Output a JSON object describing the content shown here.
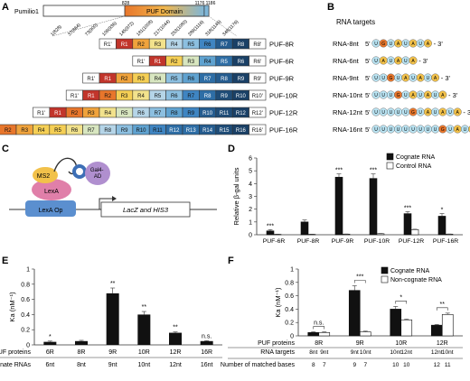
{
  "panel_labels": {
    "a": "A",
    "b": "B",
    "c": "C",
    "d": "D",
    "e": "E",
    "f": "F"
  },
  "panel_a": {
    "protein_label": "Pumilio1",
    "domain_label": "PUF Domain",
    "pos_start": "828",
    "pos_end_a": "1176",
    "pos_end_b": "1186",
    "diag_labels": [
      "1(828)",
      "37(864)",
      "73(900)",
      "109(936)",
      "145(972)",
      "181(1008)",
      "217(1044)",
      "253(1080)",
      "289(1116)",
      "318(1145)",
      "348(1176)"
    ],
    "constructs": [
      {
        "name": "PUF-8R",
        "repeats": [
          "R1'",
          "R1",
          "R2",
          "R3",
          "R4",
          "R5",
          "R6",
          "R7",
          "R8",
          "R8'"
        ]
      },
      {
        "name": "PUF-6R",
        "repeats": [
          "R1'",
          "R1",
          "R2",
          "R3",
          "R4",
          "R5",
          "R6",
          "R6'"
        ]
      },
      {
        "name": "PUF-9R",
        "repeats": [
          "R1'",
          "R1",
          "R2",
          "R3",
          "R4",
          "R5",
          "R6",
          "R7",
          "R8",
          "R9",
          "R9'"
        ]
      },
      {
        "name": "PUF-10R",
        "repeats": [
          "R1'",
          "R1",
          "R2",
          "R3",
          "R4",
          "R5",
          "R6",
          "R7",
          "R8",
          "R9",
          "R10",
          "R10'"
        ]
      },
      {
        "name": "PUF-12R",
        "repeats": [
          "R1'",
          "R1",
          "R2",
          "R3",
          "R4",
          "R5",
          "R6",
          "R7",
          "R8",
          "R9",
          "R10",
          "R11",
          "R12",
          "R12'"
        ]
      },
      {
        "name": "PUF-16R",
        "repeats": [
          "R1'",
          "R1",
          "R2",
          "R3",
          "R4",
          "R5",
          "R6",
          "R7",
          "R8",
          "R9",
          "R10",
          "R11",
          "R12",
          "R13",
          "R14",
          "R15",
          "R16",
          "R16'"
        ]
      }
    ]
  },
  "panel_b": {
    "title": "RNA targets",
    "targets": [
      {
        "name": "RNA-8nt",
        "seq": [
          "U",
          "G",
          "U",
          "A",
          "U",
          "A",
          "U",
          "A"
        ]
      },
      {
        "name": "RNA-6nt",
        "seq": [
          "U",
          "A",
          "U",
          "A",
          "U",
          "A"
        ]
      },
      {
        "name": "RNA-9nt",
        "seq": [
          "U",
          "U",
          "G",
          "U",
          "A",
          "U",
          "A",
          "U",
          "A"
        ]
      },
      {
        "name": "RNA-10nt",
        "seq": [
          "U",
          "U",
          "U",
          "G",
          "U",
          "A",
          "U",
          "A",
          "U",
          "A"
        ]
      },
      {
        "name": "RNA-12nt",
        "seq": [
          "U",
          "U",
          "U",
          "U",
          "U",
          "G",
          "U",
          "A",
          "U",
          "A",
          "U",
          "A"
        ]
      },
      {
        "name": "RNA-16nt",
        "seq": [
          "U",
          "U",
          "U",
          "U",
          "U",
          "U",
          "U",
          "U",
          "U",
          "G",
          "U",
          "A",
          "U",
          "A",
          "U",
          "A"
        ]
      }
    ],
    "prefix": "5'",
    "suffix": "- 3'"
  },
  "panel_c": {
    "ms2": "MS2",
    "gal4": "Gal4-\nAD",
    "lexa": "LexA",
    "lexa_op": "LexA Op",
    "genes": "LacZ and HIS3"
  },
  "chart_data": [
    {
      "panel": "D",
      "type": "bar",
      "categories": [
        "PUF-6R",
        "PUF-8R",
        "PUF-9R",
        "PUF-10R",
        "PUF-12R",
        "PUF-16R"
      ],
      "series": [
        {
          "name": "Cognate RNA",
          "values": [
            0.3,
            1.0,
            4.5,
            4.4,
            1.65,
            1.45
          ],
          "errors": [
            0.1,
            0.15,
            0.25,
            0.35,
            0.15,
            0.2
          ],
          "color": "#111111"
        },
        {
          "name": "Control RNA",
          "values": [
            0.03,
            0.03,
            0.05,
            0.08,
            0.4,
            0.05
          ],
          "errors": [
            0.01,
            0.01,
            0.01,
            0.02,
            0.03,
            0.01
          ],
          "color": "#ffffff"
        }
      ],
      "significance": [
        "***",
        "",
        "***",
        "***",
        "***",
        "*"
      ],
      "ylabel": "Relative β-gal units",
      "ylim": [
        0,
        6
      ],
      "yticks": [
        "0",
        "1",
        "2",
        "3",
        "4",
        "5",
        "6"
      ],
      "legend": "top-right"
    },
    {
      "panel": "E",
      "type": "bar",
      "categories": [
        "6R",
        "8R",
        "9R",
        "10R",
        "12R",
        "16R"
      ],
      "cognate_rnas": [
        "6nt",
        "8nt",
        "9nt",
        "10nt",
        "12nt",
        "16nt"
      ],
      "values": [
        0.04,
        0.05,
        0.68,
        0.4,
        0.16,
        0.05
      ],
      "errors": [
        0.01,
        0.01,
        0.07,
        0.04,
        0.01,
        0.005
      ],
      "significance": [
        "*",
        "",
        "**",
        "**",
        "**",
        "n.s."
      ],
      "ylabel": "Ka (nM⁻¹)",
      "ylim": [
        0,
        1
      ],
      "yticks": [
        "0",
        "0.2",
        "0.4",
        "0.6",
        "0.8",
        "1"
      ],
      "row_labels": [
        "PUF proteins",
        "Cognate RNAs"
      ]
    },
    {
      "panel": "F",
      "type": "bar",
      "groups": [
        {
          "protein": "8R",
          "targets": [
            "8nt",
            "9nt"
          ],
          "matched": [
            "8",
            "7"
          ],
          "values": [
            0.05,
            0.05
          ],
          "errors": [
            0.01,
            0.01
          ],
          "kinds": [
            "cognate",
            "non-cognate"
          ],
          "sig": "n.s."
        },
        {
          "protein": "9R",
          "targets": [
            "9nt",
            "10nt"
          ],
          "matched": [
            "9",
            "7"
          ],
          "values": [
            0.68,
            0.06
          ],
          "errors": [
            0.07,
            0.01
          ],
          "kinds": [
            "cognate",
            "non-cognate"
          ],
          "sig": "***"
        },
        {
          "protein": "10R",
          "targets": [
            "10nt",
            "12nt"
          ],
          "matched": [
            "10",
            "10"
          ],
          "values": [
            0.4,
            0.24
          ],
          "errors": [
            0.04,
            0.01
          ],
          "kinds": [
            "cognate",
            "non-cognate"
          ],
          "sig": "*"
        },
        {
          "protein": "12R",
          "targets": [
            "12nt",
            "10nt"
          ],
          "matched": [
            "12",
            "11"
          ],
          "values": [
            0.16,
            0.32
          ],
          "errors": [
            0.01,
            0.02
          ],
          "kinds": [
            "cognate",
            "non-cognate"
          ],
          "sig": "**"
        }
      ],
      "series": [
        {
          "name": "Cognate RNA",
          "color": "#111111"
        },
        {
          "name": "Non-cognate RNA",
          "color": "#ffffff"
        }
      ],
      "ylabel": "Ka (nM⁻¹)",
      "ylim": [
        0,
        1
      ],
      "yticks": [
        "0",
        "0.2",
        "0.4",
        "0.6",
        "0.8",
        "1"
      ],
      "row_labels": [
        "PUF proteins",
        "RNA targets",
        "Number of matched bases"
      ],
      "legend": "top-right"
    }
  ]
}
